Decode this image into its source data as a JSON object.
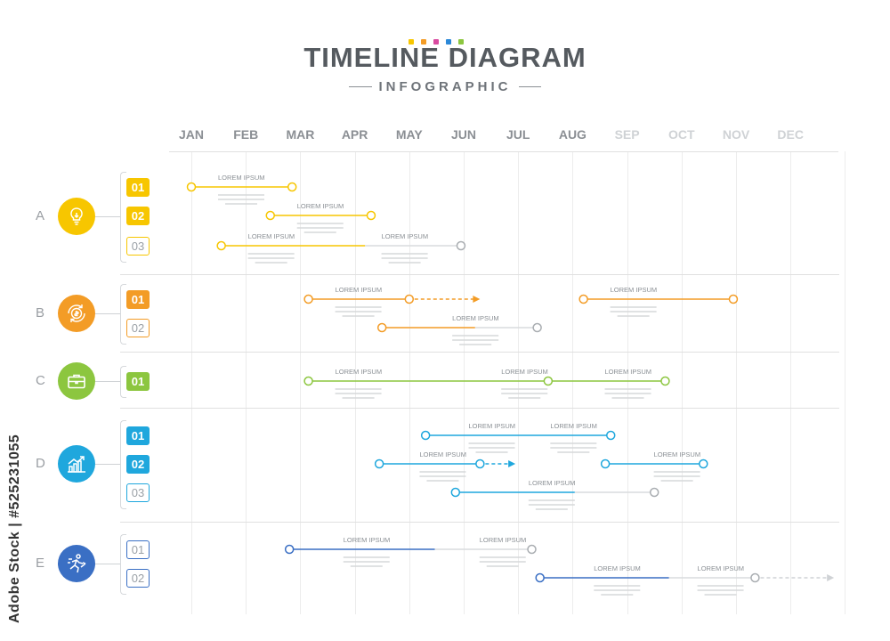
{
  "header": {
    "title": "TIMELINE DIAGRAM",
    "subtitle": "INFOGRAPHIC",
    "dot_colors": [
      "#f7c600",
      "#f39c26",
      "#d94aa0",
      "#2b88d8",
      "#8cc63f"
    ]
  },
  "months": [
    {
      "label": "JAN",
      "faded": false
    },
    {
      "label": "FEB",
      "faded": false
    },
    {
      "label": "MAR",
      "faded": false
    },
    {
      "label": "APR",
      "faded": false
    },
    {
      "label": "MAY",
      "faded": false
    },
    {
      "label": "JUN",
      "faded": false
    },
    {
      "label": "JUL",
      "faded": false
    },
    {
      "label": "AUG",
      "faded": false
    },
    {
      "label": "SEP",
      "faded": true
    },
    {
      "label": "OCT",
      "faded": true
    },
    {
      "label": "NOV",
      "faded": true
    },
    {
      "label": "DEC",
      "faded": true
    }
  ],
  "groups": [
    {
      "letter": "A",
      "color": "#f7c600",
      "icon": "lightbulb-icon",
      "rows": [
        {
          "badge": "01",
          "filled": true,
          "bars": [
            {
              "start": 0.0,
              "end": 1.85,
              "labels": [
                {
                  "at": 0.0,
                  "text": "LOREM IPSUM"
                }
              ],
              "arrow": false,
              "end_gray": false
            }
          ]
        },
        {
          "badge": "02",
          "filled": true,
          "bars": [
            {
              "start": 1.45,
              "end": 3.3,
              "labels": [
                {
                  "at": 1.45,
                  "text": "LOREM IPSUM"
                }
              ],
              "arrow": false,
              "end_gray": false
            }
          ]
        },
        {
          "badge": "03",
          "filled": false,
          "bars": [
            {
              "start": 0.55,
              "end": 4.95,
              "labels": [
                {
                  "at": 0.55,
                  "text": "LOREM IPSUM"
                },
                {
                  "at": 3.0,
                  "text": "LOREM IPSUM"
                }
              ],
              "arrow": false,
              "end_gray": true
            }
          ]
        }
      ]
    },
    {
      "letter": "B",
      "color": "#f39c26",
      "icon": "coin-cycle-icon",
      "rows": [
        {
          "badge": "01",
          "filled": true,
          "bars": [
            {
              "start": 2.15,
              "end": 4.0,
              "labels": [
                {
                  "at": 2.15,
                  "text": "LOREM IPSUM"
                }
              ],
              "arrow": true,
              "arrow_to": 5.3,
              "end_gray": false
            },
            {
              "start": 7.2,
              "end": 9.95,
              "labels": [
                {
                  "at": 7.2,
                  "text": "LOREM IPSUM"
                }
              ],
              "arrow": false,
              "end_gray": false
            }
          ]
        },
        {
          "badge": "02",
          "filled": false,
          "bars": [
            {
              "start": 3.5,
              "end": 6.35,
              "labels": [
                {
                  "at": 4.3,
                  "text": "LOREM IPSUM"
                }
              ],
              "arrow": false,
              "end_gray": true
            }
          ]
        }
      ]
    },
    {
      "letter": "C",
      "color": "#8cc63f",
      "icon": "briefcase-icon",
      "rows": [
        {
          "badge": "01",
          "filled": true,
          "bars": [
            {
              "start": 2.15,
              "end": 8.7,
              "labels": [
                {
                  "at": 2.15,
                  "text": "LOREM IPSUM"
                },
                {
                  "at": 5.2,
                  "text": "LOREM IPSUM"
                },
                {
                  "at": 7.1,
                  "text": "LOREM IPSUM"
                }
              ],
              "mid_points": [
                6.55
              ],
              "arrow": false,
              "end_gray": false
            }
          ]
        }
      ]
    },
    {
      "letter": "D",
      "color": "#1fa7dd",
      "icon": "growth-chart-icon",
      "rows": [
        {
          "badge": "01",
          "filled": true,
          "bars": [
            {
              "start": 4.3,
              "end": 7.7,
              "labels": [
                {
                  "at": 4.6,
                  "text": "LOREM IPSUM"
                },
                {
                  "at": 6.1,
                  "text": "LOREM IPSUM"
                }
              ],
              "arrow": false,
              "end_gray": false
            }
          ]
        },
        {
          "badge": "02",
          "filled": true,
          "bars": [
            {
              "start": 3.45,
              "end": 5.3,
              "labels": [
                {
                  "at": 3.7,
                  "text": "LOREM IPSUM"
                }
              ],
              "arrow": true,
              "arrow_to": 5.95,
              "end_gray": false
            },
            {
              "start": 7.6,
              "end": 9.4,
              "labels": [
                {
                  "at": 8.0,
                  "text": "LOREM IPSUM"
                }
              ],
              "arrow": false,
              "end_gray": false
            }
          ]
        },
        {
          "badge": "03",
          "filled": false,
          "bars": [
            {
              "start": 4.85,
              "end": 8.5,
              "labels": [
                {
                  "at": 5.7,
                  "text": "LOREM IPSUM"
                }
              ],
              "arrow": false,
              "end_gray": true
            }
          ]
        }
      ]
    },
    {
      "letter": "E",
      "color": "#3a6fc4",
      "icon": "runner-icon",
      "rows": [
        {
          "badge": "01",
          "filled": false,
          "bars": [
            {
              "start": 1.8,
              "end": 6.25,
              "labels": [
                {
                  "at": 2.3,
                  "text": "LOREM IPSUM"
                },
                {
                  "at": 4.8,
                  "text": "LOREM IPSUM"
                }
              ],
              "arrow": false,
              "end_gray": true
            }
          ]
        },
        {
          "badge": "02",
          "filled": false,
          "bars": [
            {
              "start": 6.4,
              "end": 10.35,
              "labels": [
                {
                  "at": 6.9,
                  "text": "LOREM IPSUM"
                },
                {
                  "at": 8.8,
                  "text": "LOREM IPSUM"
                }
              ],
              "arrow": true,
              "arrow_to": 11.8,
              "arrow_gray": true,
              "end_gray": true
            }
          ]
        }
      ]
    }
  ],
  "watermark": "Adobe Stock | #525231055"
}
